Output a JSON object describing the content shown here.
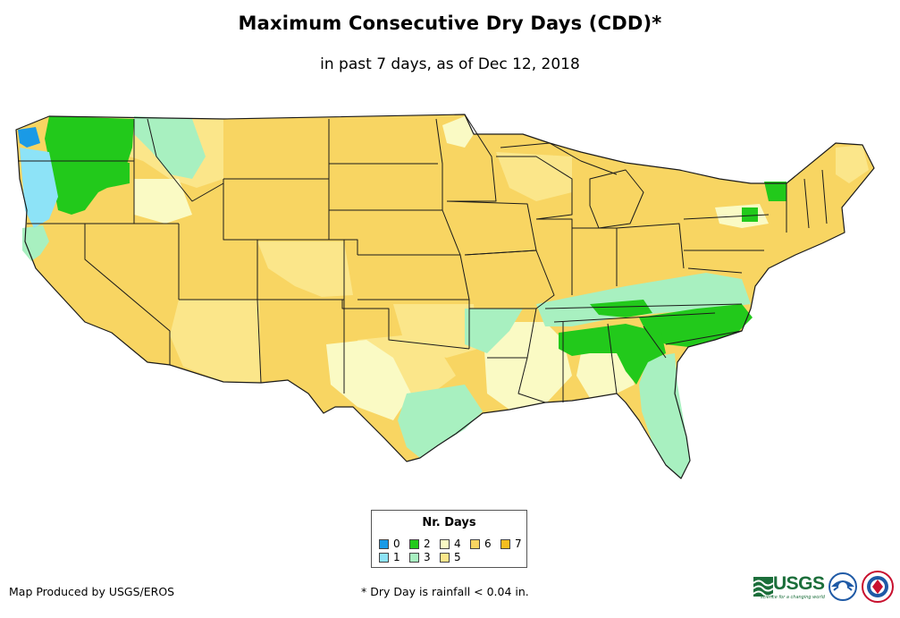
{
  "title": "Maximum Consecutive Dry Days (CDD)*",
  "subtitle": "in past 7 days, as of Dec 12, 2018",
  "legend": {
    "title": "Nr. Days",
    "items": [
      {
        "label": "0",
        "color": "#1a9ae6"
      },
      {
        "label": "1",
        "color": "#8de3f7"
      },
      {
        "label": "2",
        "color": "#22c91b"
      },
      {
        "label": "3",
        "color": "#a8f0c0"
      },
      {
        "label": "4",
        "color": "#fafac4"
      },
      {
        "label": "5",
        "color": "#fbe68a"
      },
      {
        "label": "6",
        "color": "#f8d562"
      },
      {
        "label": "7",
        "color": "#f5bd1f"
      }
    ]
  },
  "footer": {
    "credit": "Map Produced by USGS/EROS",
    "note": "* Dry Day is rainfall < 0.04 in."
  },
  "logos": {
    "usgs_word": "USGS",
    "usgs_tagline": "science for a changing world"
  },
  "colors": {
    "border": "#1a1a1a",
    "usgs_green": "#1b6e3a",
    "noaa_blue": "#1f5aa6"
  }
}
